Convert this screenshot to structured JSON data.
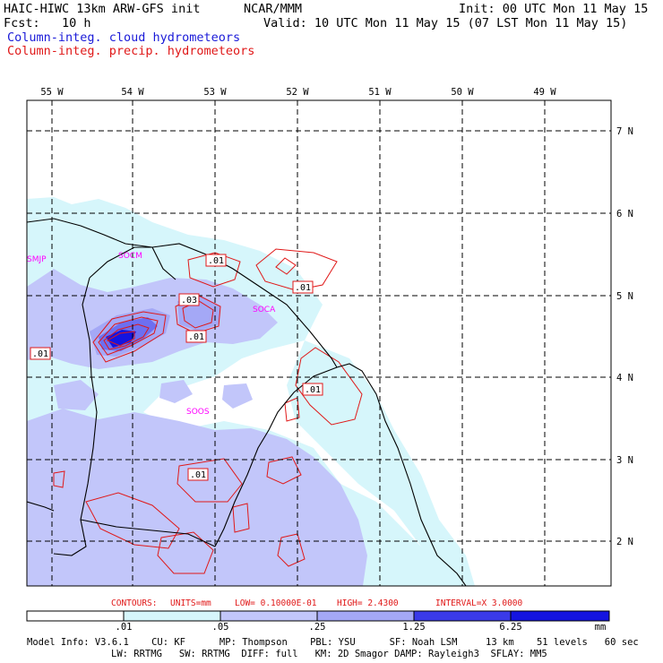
{
  "header": {
    "model_title": "HAIC-HIWC 13km ARW-GFS init",
    "center": "NCAR/MMM",
    "init": "Init: 00 UTC Mon 11 May 15",
    "fcst": "Fcst:   10 h",
    "valid": "Valid: 10 UTC Mon 11 May 15 (07 LST Mon 11 May 15)",
    "field1": "Column-integ. cloud hydrometeors",
    "field2": "Column-integ. precip. hydrometeors"
  },
  "colors": {
    "cloud_field": "#1a1ad8",
    "precip_field": "#e01818",
    "coast": "#000000",
    "station": "#ff00ff",
    "shade_levels": [
      "#d6f6fb",
      "#c2c6fa",
      "#a4a8f6",
      "#6d6ff0",
      "#3a3ae8",
      "#1414e0"
    ]
  },
  "map": {
    "lon_labels": [
      "55 W",
      "54 W",
      "53 W",
      "52 W",
      "51 W",
      "50 W",
      "49 W"
    ],
    "lat_labels": [
      "7 N",
      "6 N",
      "5 N",
      "4 N",
      "3 N",
      "2 N"
    ],
    "stations": [
      "SMJP",
      "SOCM",
      "SOCA",
      "SOOS"
    ],
    "contour_labels": [
      ".01",
      ".01",
      ".03",
      ".01",
      ".01",
      ".01",
      ".01"
    ]
  },
  "contour_info": {
    "contours": "CONTOURS:",
    "units": "UNITS=mm",
    "low": "LOW= 0.10000E-01",
    "high": "HIGH=  2.4300",
    "interval": "INTERVAL=X  3.0000"
  },
  "colorbar": {
    "ticks": [
      ".01",
      ".05",
      ".25",
      "1.25",
      "6.25"
    ],
    "unit": "mm"
  },
  "footer": {
    "line1": "Model Info: V3.6.1    CU: KF      MP: Thompson    PBL: YSU      SF: Noah LSM     13 km    51 levels   60 sec",
    "line2": "LW: RRTMG   SW: RRTMG  DIFF: full   KM: 2D Smagor DAMP: Rayleigh3  SFLAY: MM5"
  }
}
